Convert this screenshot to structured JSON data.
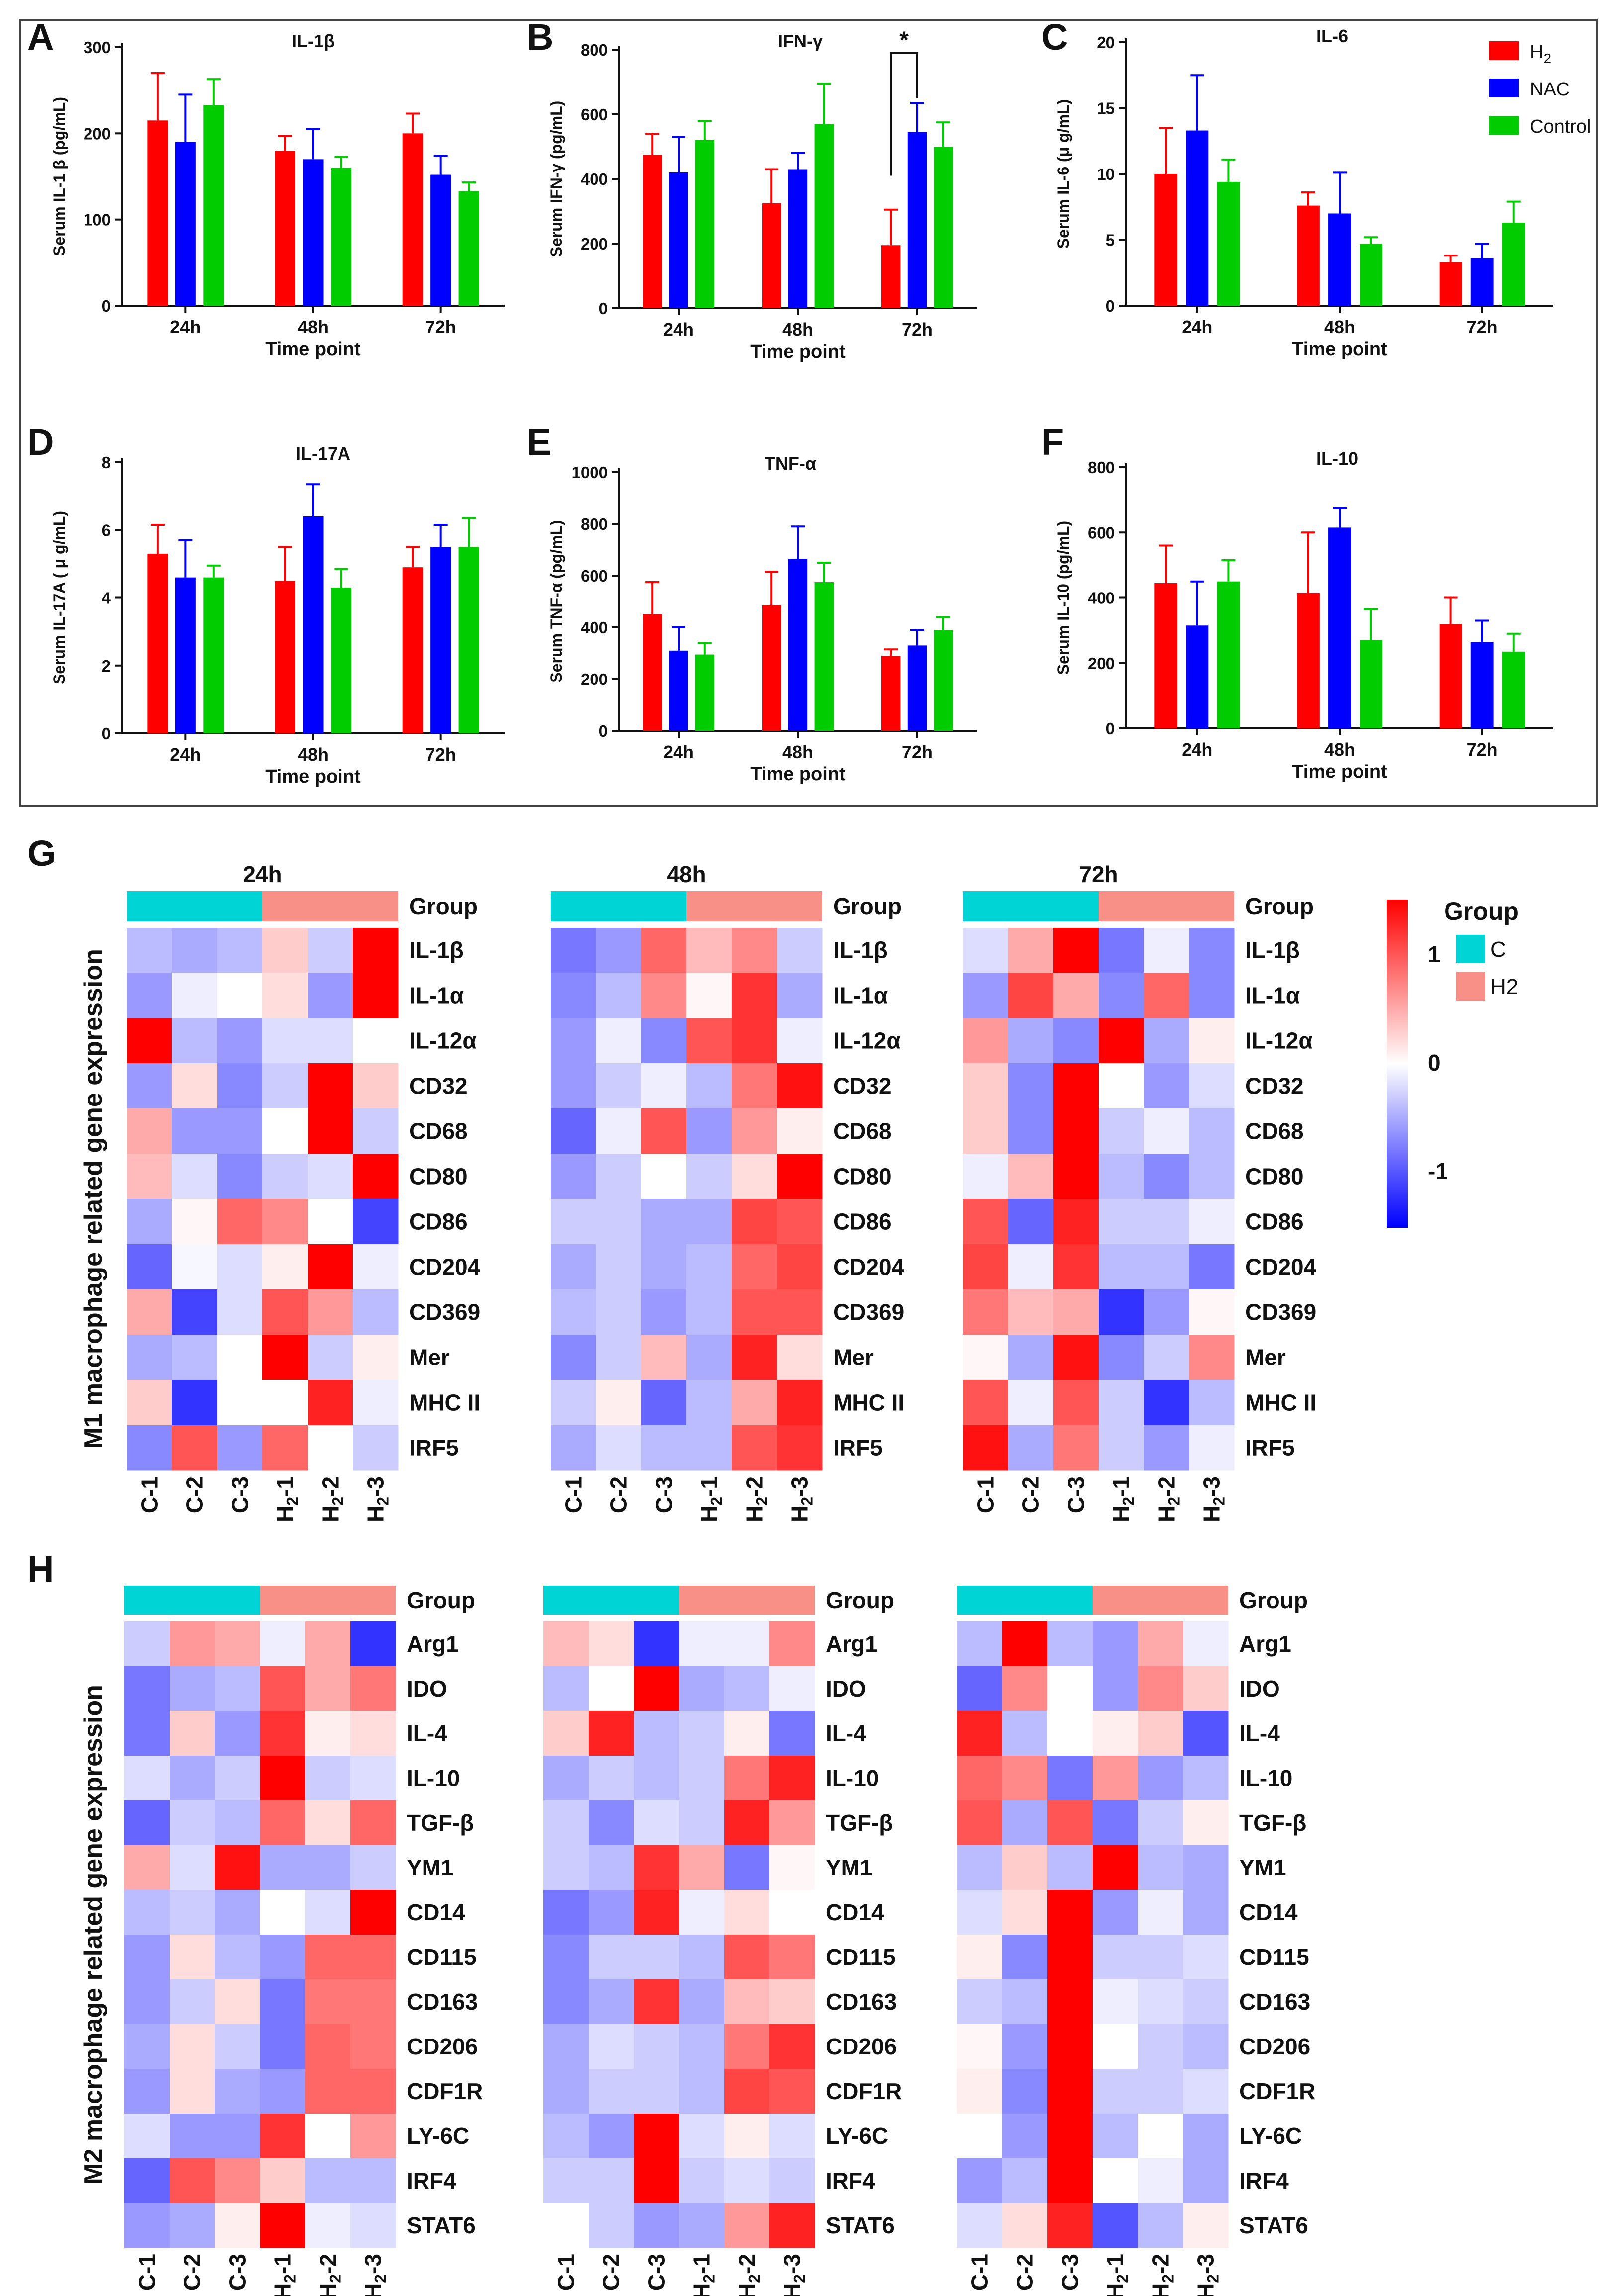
{
  "colors": {
    "h2": "#FF0000",
    "nac": "#0000FF",
    "control": "#00CC00",
    "group_c": "#00D4D4",
    "group_h2": "#F99088",
    "heat_high": "#FF0000",
    "heat_mid": "#FFFFFF",
    "heat_low": "#0000FF"
  },
  "legend": {
    "h2_label": "H",
    "h2_sub": "2",
    "nac_label": "NAC",
    "control_label": "Control"
  },
  "heat_legend": {
    "title": "Group",
    "c_label": "C",
    "h2_label": "H2",
    "ticks": [
      "1",
      "0",
      "-1"
    ]
  },
  "chart_data": [
    {
      "panel": "A",
      "type": "bar",
      "title": "IL-1β",
      "ylabel": "Serum IL-1 β (pg/mL)",
      "xlabel": "Time point",
      "categories": [
        "24h",
        "48h",
        "72h"
      ],
      "ylim": [
        0,
        300
      ],
      "yticks": [
        "0",
        "100",
        "200",
        "300"
      ],
      "series": [
        {
          "name": "H2",
          "values": [
            215,
            180,
            200
          ],
          "errors": [
            55,
            17,
            23
          ]
        },
        {
          "name": "NAC",
          "values": [
            190,
            170,
            152
          ],
          "errors": [
            55,
            35,
            22
          ]
        },
        {
          "name": "Control",
          "values": [
            233,
            160,
            133
          ],
          "errors": [
            30,
            13,
            10
          ]
        }
      ]
    },
    {
      "panel": "B",
      "type": "bar",
      "title": "IFN-γ",
      "ylabel": "Serum IFN-γ (pg/mL)",
      "xlabel": "Time point",
      "categories": [
        "24h",
        "48h",
        "72h"
      ],
      "ylim": [
        0,
        800
      ],
      "yticks": [
        "0",
        "200",
        "400",
        "600",
        "800"
      ],
      "significance": "*",
      "series": [
        {
          "name": "H2",
          "values": [
            475,
            325,
            195
          ],
          "errors": [
            65,
            105,
            110
          ]
        },
        {
          "name": "NAC",
          "values": [
            420,
            430,
            545
          ],
          "errors": [
            110,
            50,
            90
          ]
        },
        {
          "name": "Control",
          "values": [
            520,
            570,
            500
          ],
          "errors": [
            60,
            125,
            75
          ]
        }
      ]
    },
    {
      "panel": "C",
      "type": "bar",
      "title": "IL-6",
      "ylabel": "Serum IL-6 (μ g/mL)",
      "xlabel": "Time point",
      "categories": [
        "24h",
        "48h",
        "72h"
      ],
      "ylim": [
        0,
        20
      ],
      "yticks": [
        "0",
        "5",
        "10",
        "15",
        "20"
      ],
      "series": [
        {
          "name": "H2",
          "values": [
            10,
            7.6,
            3.3
          ],
          "errors": [
            3.5,
            1.0,
            0.5
          ]
        },
        {
          "name": "NAC",
          "values": [
            13.3,
            7.0,
            3.6
          ],
          "errors": [
            4.2,
            3.1,
            1.1
          ]
        },
        {
          "name": "Control",
          "values": [
            9.4,
            4.7,
            6.3
          ],
          "errors": [
            1.7,
            0.5,
            1.6
          ]
        }
      ]
    },
    {
      "panel": "D",
      "type": "bar",
      "title": "IL-17A",
      "ylabel": "Serum IL-17A ( μ g/mL)",
      "xlabel": "Time point",
      "categories": [
        "24h",
        "48h",
        "72h"
      ],
      "ylim": [
        0,
        8
      ],
      "yticks": [
        "0",
        "2",
        "4",
        "6",
        "8"
      ],
      "series": [
        {
          "name": "H2",
          "values": [
            5.3,
            4.5,
            4.9
          ],
          "errors": [
            0.85,
            1.0,
            0.6
          ]
        },
        {
          "name": "NAC",
          "values": [
            4.6,
            6.4,
            5.5
          ],
          "errors": [
            1.1,
            0.95,
            0.65
          ]
        },
        {
          "name": "Control",
          "values": [
            4.6,
            4.3,
            5.5
          ],
          "errors": [
            0.35,
            0.55,
            0.85
          ]
        }
      ]
    },
    {
      "panel": "E",
      "type": "bar",
      "title": "TNF-α",
      "ylabel": "Serum TNF-α (pg/mL)",
      "xlabel": "Time point",
      "categories": [
        "24h",
        "48h",
        "72h"
      ],
      "ylim": [
        0,
        1000
      ],
      "yticks": [
        "0",
        "200",
        "400",
        "600",
        "800",
        "1000"
      ],
      "series": [
        {
          "name": "H2",
          "values": [
            450,
            485,
            290
          ],
          "errors": [
            125,
            130,
            25
          ]
        },
        {
          "name": "NAC",
          "values": [
            310,
            665,
            330
          ],
          "errors": [
            90,
            125,
            60
          ]
        },
        {
          "name": "Control",
          "values": [
            295,
            575,
            390
          ],
          "errors": [
            45,
            75,
            50
          ]
        }
      ]
    },
    {
      "panel": "F",
      "type": "bar",
      "title": "IL-10",
      "ylabel": "Serum IL-10 (pg/mL)",
      "xlabel": "Time point",
      "categories": [
        "24h",
        "48h",
        "72h"
      ],
      "ylim": [
        0,
        800
      ],
      "yticks": [
        "0",
        "200",
        "400",
        "600",
        "800"
      ],
      "series": [
        {
          "name": "H2",
          "values": [
            445,
            415,
            320
          ],
          "errors": [
            115,
            185,
            80
          ]
        },
        {
          "name": "NAC",
          "values": [
            315,
            615,
            265
          ],
          "errors": [
            135,
            60,
            65
          ]
        },
        {
          "name": "Control",
          "values": [
            450,
            270,
            235
          ],
          "errors": [
            65,
            95,
            55
          ]
        }
      ]
    },
    {
      "panel": "G",
      "type": "heatmap",
      "ylabel": "M1 macrophage related gene expression",
      "group_label": "Group",
      "columns": [
        "C-1",
        "C-2",
        "C-3",
        "H2-1",
        "H2-2",
        "H2-3"
      ],
      "genes": [
        "IL-1β",
        "IL-1α",
        "IL-12α",
        "CD32",
        "CD68",
        "CD80",
        "CD86",
        "CD204",
        "CD369",
        "Mer",
        "MHC II",
        "IRF5"
      ],
      "maps": [
        {
          "title": "24h",
          "values": [
            [
              -0.4,
              -0.5,
              -0.4,
              0.3,
              -0.3,
              1.5
            ],
            [
              -0.6,
              -0.1,
              0.0,
              0.2,
              -0.6,
              1.5
            ],
            [
              1.5,
              -0.4,
              -0.6,
              -0.2,
              -0.2,
              0.0
            ],
            [
              -0.6,
              0.2,
              -0.7,
              -0.3,
              1.5,
              0.3
            ],
            [
              0.5,
              -0.6,
              -0.6,
              0.0,
              1.5,
              -0.3
            ],
            [
              0.4,
              -0.2,
              -0.7,
              -0.3,
              -0.2,
              1.5
            ],
            [
              -0.5,
              0.05,
              0.9,
              0.7,
              0.0,
              -1.1
            ],
            [
              -0.9,
              -0.05,
              -0.2,
              0.1,
              1.5,
              -0.1
            ],
            [
              0.5,
              -1.1,
              -0.2,
              1.0,
              0.6,
              -0.4
            ],
            [
              -0.5,
              -0.4,
              0.0,
              1.6,
              -0.3,
              0.1
            ],
            [
              0.3,
              -1.2,
              0.0,
              0.0,
              1.3,
              -0.1
            ],
            [
              -0.7,
              1.0,
              -0.6,
              0.9,
              0.0,
              -0.3
            ]
          ]
        },
        {
          "title": "48h",
          "values": [
            [
              -0.8,
              -0.6,
              0.9,
              0.4,
              0.7,
              -0.3
            ],
            [
              -0.7,
              -0.4,
              0.7,
              0.05,
              1.2,
              -0.5
            ],
            [
              -0.6,
              -0.1,
              -0.7,
              1.0,
              1.2,
              -0.1
            ],
            [
              -0.6,
              -0.3,
              -0.1,
              -0.4,
              0.8,
              1.4
            ],
            [
              -0.9,
              -0.1,
              1.0,
              -0.6,
              0.6,
              0.1
            ],
            [
              -0.6,
              -0.3,
              0.0,
              -0.3,
              0.2,
              1.6
            ],
            [
              -0.3,
              -0.3,
              -0.5,
              -0.5,
              1.1,
              1.0
            ],
            [
              -0.5,
              -0.3,
              -0.5,
              -0.4,
              0.9,
              1.1
            ],
            [
              -0.4,
              -0.3,
              -0.6,
              -0.4,
              1.0,
              1.0
            ],
            [
              -0.7,
              -0.3,
              0.4,
              -0.5,
              1.3,
              0.2
            ],
            [
              -0.3,
              0.1,
              -0.9,
              -0.4,
              0.5,
              1.3
            ],
            [
              -0.5,
              -0.2,
              -0.4,
              -0.4,
              1.0,
              1.2
            ]
          ]
        },
        {
          "title": "72h",
          "values": [
            [
              -0.2,
              0.5,
              1.6,
              -0.8,
              -0.1,
              -0.7
            ],
            [
              -0.6,
              1.1,
              0.5,
              -0.7,
              0.9,
              -0.7
            ],
            [
              0.6,
              -0.5,
              -0.7,
              1.5,
              -0.5,
              0.1
            ],
            [
              0.3,
              -0.7,
              1.7,
              0.0,
              -0.6,
              -0.2
            ],
            [
              0.3,
              -0.7,
              1.7,
              -0.3,
              -0.1,
              -0.4
            ],
            [
              -0.1,
              0.4,
              1.7,
              -0.4,
              -0.7,
              -0.4
            ],
            [
              1.0,
              -0.9,
              1.3,
              -0.3,
              -0.3,
              -0.1
            ],
            [
              1.1,
              -0.1,
              1.2,
              -0.4,
              -0.4,
              -0.8
            ],
            [
              0.8,
              0.4,
              0.5,
              -1.2,
              -0.6,
              0.05
            ],
            [
              0.05,
              -0.5,
              1.4,
              -0.7,
              -0.3,
              0.7
            ],
            [
              1.0,
              -0.1,
              1.0,
              -0.3,
              -1.2,
              -0.4
            ],
            [
              1.4,
              -0.5,
              0.8,
              -0.3,
              -0.6,
              -0.1
            ]
          ]
        }
      ]
    },
    {
      "panel": "H",
      "type": "heatmap",
      "ylabel": "M2 macrophage related gene expression",
      "group_label": "Group",
      "columns": [
        "C-1",
        "C-2",
        "C-3",
        "H2-1",
        "H2-2",
        "H2-3"
      ],
      "genes": [
        "Arg1",
        "IDO",
        "IL-4",
        "IL-10",
        "TGF-β",
        "YM1",
        "CD14",
        "CD115",
        "CD163",
        "CD206",
        "CDF1R",
        "LY-6C",
        "IRF4",
        "STAT6"
      ],
      "maps": [
        {
          "title": "24h",
          "values": [
            [
              -0.3,
              0.6,
              0.5,
              -0.1,
              0.5,
              -1.2
            ],
            [
              -0.8,
              -0.5,
              -0.4,
              1.0,
              0.5,
              0.8
            ],
            [
              -0.8,
              0.3,
              -0.6,
              1.2,
              0.1,
              0.2
            ],
            [
              -0.2,
              -0.5,
              -0.3,
              1.6,
              -0.3,
              -0.2
            ],
            [
              -0.9,
              -0.3,
              -0.4,
              0.9,
              0.2,
              0.9
            ],
            [
              0.5,
              -0.2,
              1.4,
              -0.5,
              -0.5,
              -0.3
            ],
            [
              -0.4,
              -0.3,
              -0.5,
              0.0,
              -0.2,
              1.6
            ],
            [
              -0.6,
              0.2,
              -0.4,
              -0.6,
              0.9,
              0.9
            ],
            [
              -0.6,
              -0.3,
              0.2,
              -0.8,
              0.8,
              0.8
            ],
            [
              -0.5,
              0.2,
              -0.3,
              -0.8,
              0.9,
              0.8
            ],
            [
              -0.6,
              0.2,
              -0.5,
              -0.6,
              0.9,
              0.9
            ],
            [
              -0.2,
              -0.6,
              -0.6,
              1.2,
              0.0,
              0.6
            ],
            [
              -0.9,
              1.0,
              0.7,
              0.3,
              -0.4,
              -0.4
            ],
            [
              -0.6,
              -0.5,
              0.1,
              1.6,
              -0.1,
              -0.2
            ]
          ]
        },
        {
          "title": "48h",
          "values": [
            [
              0.4,
              0.2,
              -1.2,
              -0.1,
              -0.1,
              0.7
            ],
            [
              -0.4,
              0.0,
              1.6,
              -0.5,
              -0.4,
              -0.1
            ],
            [
              0.3,
              1.3,
              -0.4,
              -0.3,
              0.1,
              -0.8
            ],
            [
              -0.5,
              -0.3,
              -0.4,
              -0.3,
              0.8,
              1.3
            ],
            [
              -0.3,
              -0.7,
              -0.2,
              -0.3,
              1.3,
              0.6
            ],
            [
              -0.3,
              -0.4,
              1.2,
              0.5,
              -0.8,
              0.05
            ],
            [
              -0.8,
              -0.6,
              1.3,
              -0.1,
              0.2,
              0.0
            ],
            [
              -0.7,
              -0.3,
              -0.3,
              -0.4,
              1.0,
              0.8
            ],
            [
              -0.7,
              -0.5,
              1.2,
              -0.5,
              0.4,
              0.3
            ],
            [
              -0.5,
              -0.2,
              -0.3,
              -0.4,
              0.8,
              1.2
            ],
            [
              -0.5,
              -0.3,
              -0.3,
              -0.4,
              1.1,
              1.0
            ],
            [
              -0.4,
              -0.6,
              1.7,
              -0.2,
              0.1,
              -0.2
            ],
            [
              -0.3,
              -0.3,
              1.7,
              -0.3,
              -0.2,
              -0.3
            ],
            [
              0.0,
              -0.3,
              -0.6,
              -0.5,
              0.6,
              1.3
            ]
          ]
        },
        {
          "title": "72h",
          "values": [
            [
              -0.4,
              1.6,
              -0.4,
              -0.6,
              0.5,
              -0.1
            ],
            [
              -0.9,
              0.7,
              0.0,
              -0.6,
              0.7,
              0.3
            ],
            [
              1.3,
              -0.4,
              0.0,
              0.1,
              0.3,
              -1.0
            ],
            [
              0.9,
              0.7,
              -0.8,
              0.6,
              -0.6,
              -0.4
            ],
            [
              1.0,
              -0.5,
              1.0,
              -0.8,
              -0.3,
              0.1
            ],
            [
              -0.4,
              0.3,
              -0.4,
              1.7,
              -0.4,
              -0.5
            ],
            [
              -0.2,
              0.2,
              1.7,
              -0.6,
              -0.1,
              -0.5
            ],
            [
              0.1,
              -0.7,
              1.7,
              -0.3,
              -0.3,
              -0.2
            ],
            [
              -0.3,
              -0.4,
              1.7,
              -0.1,
              -0.2,
              -0.3
            ],
            [
              0.05,
              -0.6,
              1.7,
              0.0,
              -0.3,
              -0.4
            ],
            [
              0.1,
              -0.7,
              1.7,
              -0.3,
              -0.3,
              -0.2
            ],
            [
              0.0,
              -0.6,
              1.7,
              -0.4,
              0.0,
              -0.5
            ],
            [
              -0.6,
              -0.4,
              1.7,
              0.0,
              -0.1,
              -0.5
            ],
            [
              -0.2,
              0.2,
              1.3,
              -1.0,
              -0.4,
              0.1
            ]
          ]
        }
      ]
    }
  ]
}
